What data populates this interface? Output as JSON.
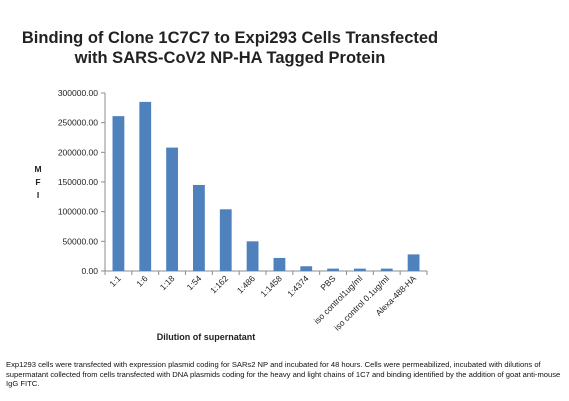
{
  "chart_data": {
    "type": "bar",
    "title_line1": "Binding of Clone 1C7C7 to Expi293 Cells Transfected",
    "title_line2": "with SARS-CoV2 NP-HA Tagged Protein",
    "ylabel_letters": [
      "M",
      "F",
      "I"
    ],
    "xlabel": "Dilution of supernatant",
    "ylim": [
      0,
      300000
    ],
    "yticks": [
      "0.00",
      "50000.00",
      "100000.00",
      "150000.00",
      "200000.00",
      "250000.00",
      "300000.00"
    ],
    "categories": [
      "1:1",
      "1:6",
      "1:18",
      "1:54",
      "1:162",
      "1:486",
      "1:1458",
      "1:4374",
      "PBS",
      "iso control1ug/ml",
      "iso control 0.1ug/ml",
      "Alexa-488-HA"
    ],
    "series": [
      {
        "values": [
          261000,
          285000,
          208000,
          145000,
          104000,
          50000,
          22000,
          8000,
          4000,
          4000,
          4000,
          28000
        ]
      }
    ],
    "bar_color": "#4f81bd",
    "grid": false,
    "legend": "none"
  },
  "caption": "Exp1293 cells were transfected with expression plasmid coding for SARs2 NP and incubated for 48 hours. Cells were permeabilized, incubated with dilutions of supermatant collected from cells transfected with DNA plasmids coding for the heavy and light chains of 1C7 and binding identified by the addition of goat anti-mouse IgG FITC."
}
